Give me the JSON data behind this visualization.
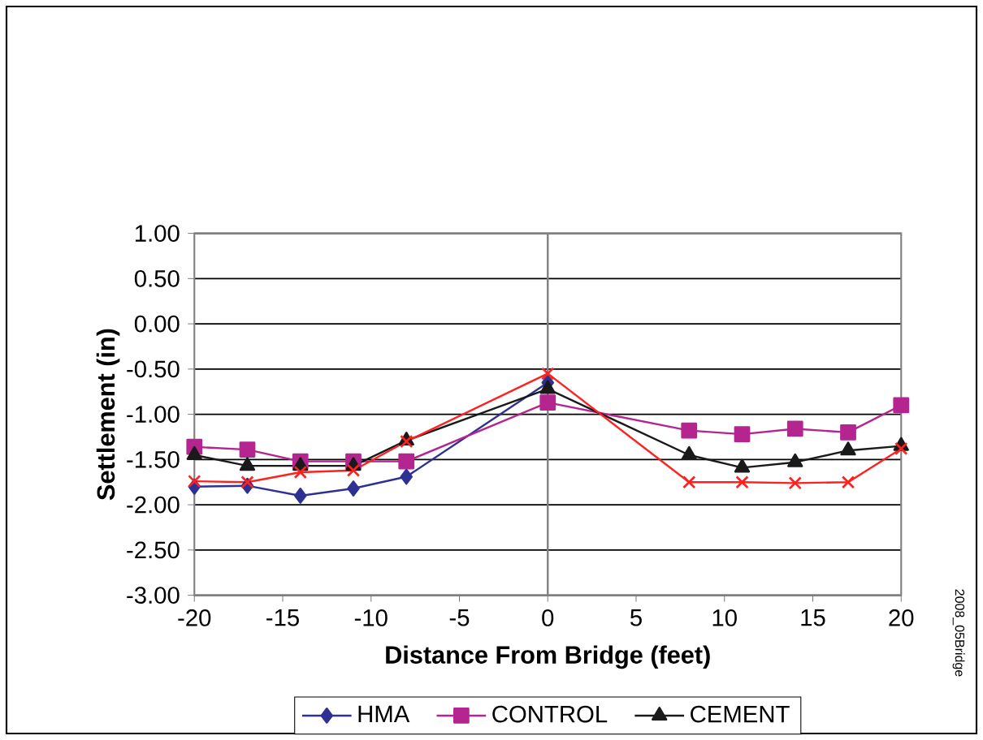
{
  "chart_data": {
    "type": "line",
    "xlabel": "Distance From Bridge (feet)",
    "ylabel": "Settlement (in)",
    "x": [
      -20,
      -17,
      -14,
      -11,
      -8,
      0,
      8,
      11,
      14,
      17,
      20
    ],
    "series": [
      {
        "name": "HMA",
        "color": "#2e3192",
        "marker": "diamond",
        "values": [
          -1.8,
          -1.79,
          -1.9,
          -1.82,
          -1.69,
          -0.65,
          null,
          null,
          null,
          null,
          null
        ]
      },
      {
        "name": "CONTROL",
        "color": "#b5258f",
        "marker": "square",
        "values": [
          -1.36,
          -1.39,
          -1.52,
          -1.52,
          -1.52,
          -0.87,
          -1.18,
          -1.22,
          -1.16,
          -1.2,
          -0.9
        ]
      },
      {
        "name": "CEMENT",
        "color": "#1a1a1a",
        "marker": "triangle",
        "values": [
          -1.45,
          -1.57,
          -1.57,
          -1.57,
          -1.29,
          -0.72,
          -1.45,
          -1.59,
          -1.53,
          -1.4,
          -1.35
        ]
      },
      {
        "color": "#ff2020",
        "marker": "cross",
        "values": [
          -1.74,
          -1.75,
          -1.64,
          -1.62,
          -1.3,
          -0.55,
          -1.75,
          -1.75,
          -1.76,
          -1.75,
          -1.38
        ]
      }
    ],
    "xlim": [
      -20,
      20
    ],
    "xticks": [
      -20,
      -15,
      -10,
      -5,
      0,
      5,
      10,
      15,
      20
    ],
    "ylim": [
      -3,
      1
    ],
    "yticks": [
      {
        "value": -3,
        "label": "-3.00"
      },
      {
        "value": -2.5,
        "label": "-2.50"
      },
      {
        "value": -2,
        "label": "-2.00"
      },
      {
        "value": -1.5,
        "label": "-1.50"
      },
      {
        "value": -1,
        "label": "-1.00"
      },
      {
        "value": -0.5,
        "label": "-0.50"
      },
      {
        "value": 0,
        "label": "0.00"
      },
      {
        "value": 0.5,
        "label": "0.50"
      },
      {
        "value": 1,
        "label": "1.00"
      }
    ],
    "grid": "y",
    "legend": "bottom",
    "ref_lines": [
      {
        "axis": "x",
        "value": 0,
        "color": "#808080"
      }
    ],
    "annotations": [
      "2008_05Bridge"
    ]
  }
}
